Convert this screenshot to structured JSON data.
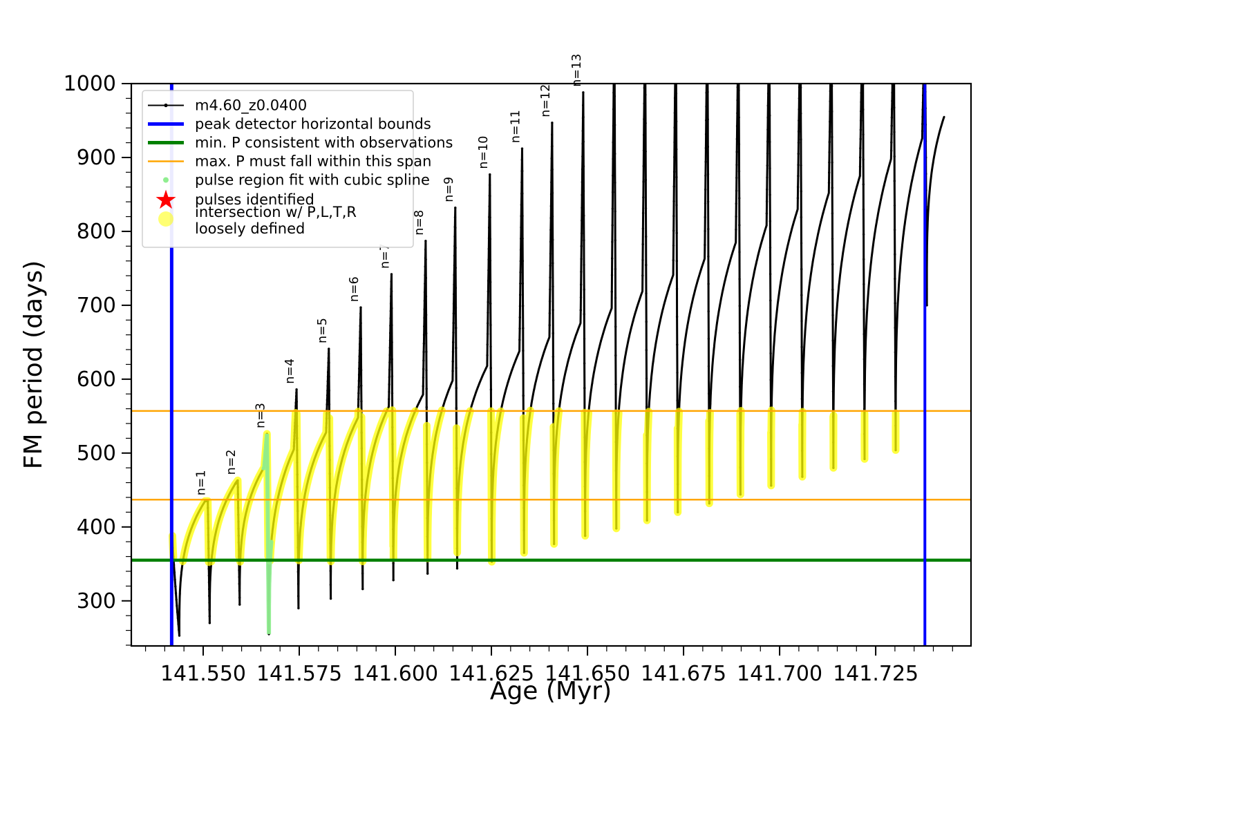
{
  "chart_data": {
    "type": "line",
    "title": "",
    "xlabel": "Age (Myr)",
    "ylabel": "FM period (days)",
    "xlim": [
      141.5313,
      141.7498
    ],
    "ylim": [
      239,
      1000
    ],
    "xticks": {
      "values": [
        141.55,
        141.575,
        141.6,
        141.625,
        141.65,
        141.675,
        141.7,
        141.725
      ],
      "labels": [
        "141.550",
        "141.575",
        "141.600",
        "141.625",
        "141.650",
        "141.675",
        "141.700",
        "141.725"
      ],
      "minor_step": 0.005
    },
    "yticks": {
      "values": [
        300,
        400,
        500,
        600,
        700,
        800,
        900,
        1000
      ],
      "labels": [
        "300",
        "400",
        "500",
        "600",
        "700",
        "800",
        "900",
        "1000"
      ],
      "minor_step": 20
    },
    "series_label": "m4.60_z0.0400",
    "bounds": {
      "peak_detector_t": [
        141.5418,
        141.7378
      ],
      "min_P": 355,
      "max_P_span": [
        437,
        557
      ]
    },
    "start_point": {
      "t": 141.542,
      "P": 388
    },
    "first_dip": {
      "t": 141.5438,
      "P": 253
    },
    "pulses": [
      {
        "t": 141.5512,
        "arc": 435,
        "spike": 435,
        "dip": 270,
        "label": "n=1"
      },
      {
        "t": 141.559,
        "arc": 458,
        "spike": 463,
        "dip": 295,
        "label": "n=2"
      },
      {
        "t": 141.5666,
        "arc": 481,
        "spike": 526,
        "dip": 255,
        "label": "n=3"
      },
      {
        "t": 141.5743,
        "arc": 505,
        "spike": 586,
        "dip": 290,
        "label": "n=4"
      },
      {
        "t": 141.5827,
        "arc": 528,
        "spike": 641,
        "dip": 303,
        "label": "n=5"
      },
      {
        "t": 141.591,
        "arc": 548,
        "spike": 697,
        "dip": 316,
        "label": "n=6"
      },
      {
        "t": 141.599,
        "arc": 563,
        "spike": 742,
        "dip": 328,
        "label": "n=7"
      },
      {
        "t": 141.6079,
        "arc": 579,
        "spike": 787,
        "dip": 337,
        "label": "n=8"
      },
      {
        "t": 141.6156,
        "arc": 598,
        "spike": 832,
        "dip": 344,
        "label": "n=9"
      },
      {
        "t": 141.6246,
        "arc": 618,
        "spike": 877,
        "dip": 353,
        "label": "n=10"
      },
      {
        "t": 141.633,
        "arc": 638,
        "spike": 912,
        "dip": 365,
        "label": "n=11"
      },
      {
        "t": 141.6408,
        "arc": 657,
        "spike": 947,
        "dip": 377,
        "label": "n=12"
      },
      {
        "t": 141.6489,
        "arc": 676,
        "spike": 988,
        "dip": 388,
        "label": "n=13"
      },
      {
        "t": 141.657,
        "arc": 696,
        "spike": 1100,
        "dip": 398
      },
      {
        "t": 141.665,
        "arc": 719,
        "spike": 1100,
        "dip": 409
      },
      {
        "t": 141.673,
        "arc": 741,
        "spike": 1100,
        "dip": 420
      },
      {
        "t": 141.6812,
        "arc": 763,
        "spike": 1100,
        "dip": 432
      },
      {
        "t": 141.6893,
        "arc": 785,
        "spike": 1100,
        "dip": 444
      },
      {
        "t": 141.6973,
        "arc": 808,
        "spike": 1100,
        "dip": 456
      },
      {
        "t": 141.7054,
        "arc": 830,
        "spike": 1100,
        "dip": 468
      },
      {
        "t": 141.7135,
        "arc": 852,
        "spike": 1100,
        "dip": 480
      },
      {
        "t": 141.7216,
        "arc": 875,
        "spike": 1100,
        "dip": 492
      },
      {
        "t": 141.7297,
        "arc": 898,
        "spike": 1100,
        "dip": 504
      },
      {
        "t": 141.7378,
        "arc": 926,
        "spike": 1100,
        "dip": 700
      }
    ],
    "final_arc": {
      "t_end": 141.7428,
      "P_end": 955
    },
    "spline_region": {
      "t_start": 141.5656,
      "t_end": 141.5678,
      "P_max": 530
    },
    "intersection_band": {
      "P_min": 352,
      "P_max": 558,
      "t_max": 141.7385
    }
  },
  "legend": {
    "items": [
      {
        "symbol": "line-dot",
        "label": "m4.60_z0.0400"
      },
      {
        "symbol": "vline-blue",
        "label": "peak detector horizontal bounds"
      },
      {
        "symbol": "hline-green",
        "label": "min. P consistent with observations"
      },
      {
        "symbol": "hline-orange",
        "label": "max. P must fall within this span"
      },
      {
        "symbol": "dot-lightgreen",
        "label": "pulse region fit with cubic spline"
      },
      {
        "symbol": "star-red",
        "label": "pulses identified"
      },
      {
        "symbol": "dot-yellow",
        "label": "intersection w/ P,L,T,R\nloosely defined"
      }
    ]
  },
  "colors": {
    "track": "#000000",
    "peak_bounds": "#0000ff",
    "min_p": "#008000",
    "max_span": "#ffa500",
    "spline": "#90ee90",
    "pulses_identified": "#ff0000",
    "intersection": "#ffff00"
  }
}
